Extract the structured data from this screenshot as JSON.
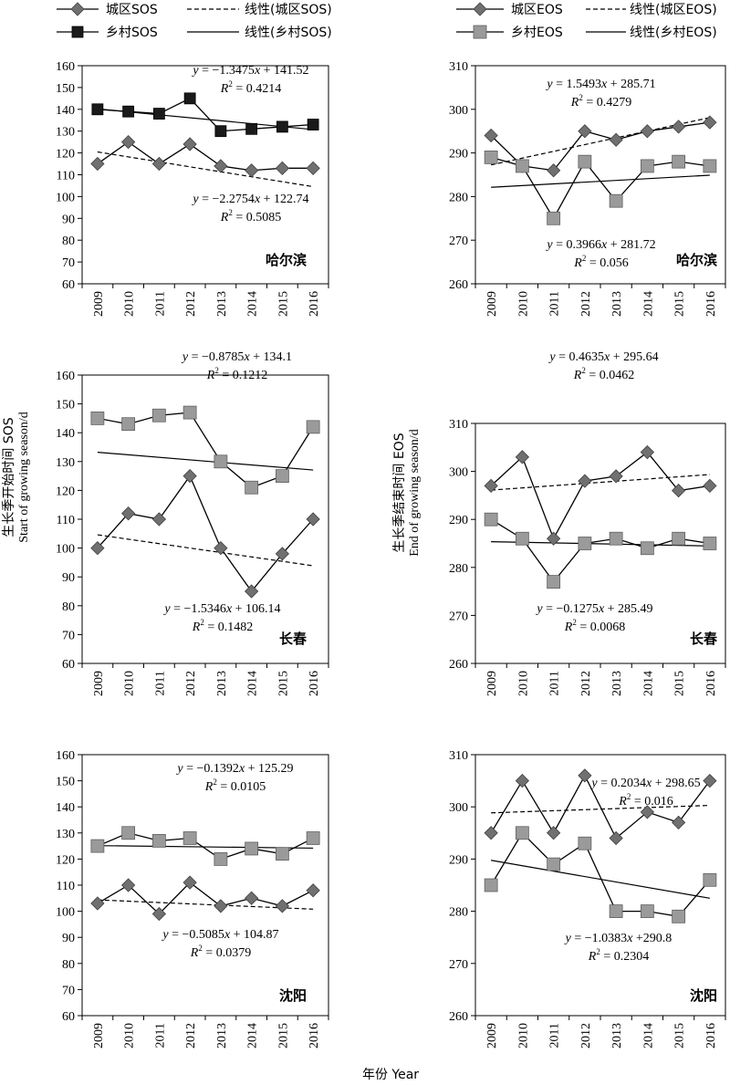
{
  "legend_left": {
    "urban_sos": "城区SOS",
    "urban_sos_linear": "线性(城区SOS)",
    "rural_sos": "乡村SOS",
    "rural_sos_linear": "线性(乡村SOS)"
  },
  "legend_right": {
    "urban_eos": "城区EOS",
    "urban_eos_linear": "线性(城区EOS)",
    "rural_eos": "乡村EOS",
    "rural_eos_linear": "线性(乡村EOS)"
  },
  "left_axis": {
    "label_cn": "生长季开始时间 SOS",
    "label_en": "Start of growing season/d"
  },
  "right_axis": {
    "label_cn": "生长季结束时间 EOS",
    "label_en": "End of growing season/d"
  },
  "x_axis_label": "年份 Year",
  "colors": {
    "urban_marker": "#707070",
    "rural_marker": "#9a9a9a",
    "rural_marker_dark": "#1a1a1a",
    "line": "#000000"
  },
  "chart_data": [
    {
      "type": "line",
      "city": "哈尔滨",
      "metric": "SOS",
      "x": [
        2009,
        2010,
        2011,
        2012,
        2013,
        2014,
        2015,
        2016
      ],
      "ylim": [
        60,
        160
      ],
      "yticks": [
        60,
        70,
        80,
        90,
        100,
        110,
        120,
        130,
        140,
        150,
        160
      ],
      "series": [
        {
          "name": "城区SOS",
          "values": [
            115,
            125,
            115,
            124,
            114,
            112,
            113,
            113
          ]
        },
        {
          "name": "乡村SOS",
          "values": [
            140,
            139,
            138,
            145,
            130,
            131,
            132,
            133
          ]
        }
      ],
      "annotations": [
        {
          "series": "乡村SOS",
          "eq": "y = −1.3475x + 141.52",
          "r2": "R2 = 0.4214",
          "slope": -1.3475,
          "intercept": 141.52
        },
        {
          "series": "城区SOS",
          "eq": "y = −2.2754x + 122.74",
          "r2": "R2 = 0.5085",
          "slope": -2.2754,
          "intercept": 122.74
        }
      ]
    },
    {
      "type": "line",
      "city": "哈尔滨",
      "metric": "EOS",
      "x": [
        2009,
        2010,
        2011,
        2012,
        2013,
        2014,
        2015,
        2016
      ],
      "ylim": [
        260,
        310
      ],
      "yticks": [
        260,
        270,
        280,
        290,
        300,
        310
      ],
      "series": [
        {
          "name": "城区EOS",
          "values": [
            294,
            287,
            286,
            295,
            293,
            295,
            296,
            297
          ]
        },
        {
          "name": "乡村EOS",
          "values": [
            289,
            287,
            275,
            288,
            279,
            287,
            288,
            287
          ]
        }
      ],
      "annotations": [
        {
          "series": "城区EOS",
          "eq": "y = 1.5493x + 285.71",
          "r2": "R2 = 0.4279",
          "slope": 1.5493,
          "intercept": 285.71
        },
        {
          "series": "乡村EOS",
          "eq": "y = 0.3966x + 281.72",
          "r2": "R2 = 0.056",
          "slope": 0.3966,
          "intercept": 281.72
        }
      ]
    },
    {
      "type": "line",
      "city": "长春",
      "metric": "SOS",
      "x": [
        2009,
        2010,
        2011,
        2012,
        2013,
        2014,
        2015,
        2016
      ],
      "ylim": [
        60,
        160
      ],
      "yticks": [
        60,
        70,
        80,
        90,
        100,
        110,
        120,
        130,
        140,
        150,
        160
      ],
      "series": [
        {
          "name": "城区SOS",
          "values": [
            100,
            112,
            110,
            125,
            100,
            85,
            98,
            110
          ]
        },
        {
          "name": "乡村SOS",
          "values": [
            145,
            143,
            146,
            147,
            130,
            121,
            125,
            142
          ]
        }
      ],
      "annotations": [
        {
          "series": "乡村SOS",
          "eq": "y = −0.8785x + 134.1",
          "r2": "R2 = 0.1212",
          "slope": -0.8785,
          "intercept": 134.1
        },
        {
          "series": "城区SOS",
          "eq": "y = −1.5346x + 106.14",
          "r2": "R2 = 0.1482",
          "slope": -1.5346,
          "intercept": 106.14
        }
      ]
    },
    {
      "type": "line",
      "city": "长春",
      "metric": "EOS",
      "x": [
        2009,
        2010,
        2011,
        2012,
        2013,
        2014,
        2015,
        2016
      ],
      "ylim": [
        260,
        310
      ],
      "yticks": [
        260,
        270,
        280,
        290,
        300,
        310
      ],
      "series": [
        {
          "name": "城区EOS",
          "values": [
            297,
            303,
            286,
            298,
            299,
            304,
            296,
            297
          ]
        },
        {
          "name": "乡村EOS",
          "values": [
            290,
            286,
            277,
            285,
            286,
            284,
            286,
            285
          ]
        }
      ],
      "annotations": [
        {
          "series": "城区EOS",
          "eq": "y = 0.4635x + 295.64",
          "r2": "R2 = 0.0462",
          "slope": 0.4635,
          "intercept": 295.64
        },
        {
          "series": "乡村EOS",
          "eq": "y = −0.1275x + 285.49",
          "r2": "R2 = 0.0068",
          "slope": -0.1275,
          "intercept": 285.49
        }
      ]
    },
    {
      "type": "line",
      "city": "沈阳",
      "metric": "SOS",
      "x": [
        2009,
        2010,
        2011,
        2012,
        2013,
        2014,
        2015,
        2016
      ],
      "ylim": [
        60,
        160
      ],
      "yticks": [
        60,
        70,
        80,
        90,
        100,
        110,
        120,
        130,
        140,
        150,
        160
      ],
      "series": [
        {
          "name": "城区SOS",
          "values": [
            103,
            110,
            99,
            111,
            102,
            105,
            102,
            108
          ]
        },
        {
          "name": "乡村SOS",
          "values": [
            125,
            130,
            127,
            128,
            120,
            124,
            122,
            128
          ]
        }
      ],
      "annotations": [
        {
          "series": "乡村SOS",
          "eq": "y = −0.1392x + 125.29",
          "r2": "R2 = 0.0105",
          "slope": -0.1392,
          "intercept": 125.29
        },
        {
          "series": "城区SOS",
          "eq": "y = −0.5085x + 104.87",
          "r2": "R2 = 0.0379",
          "slope": -0.5085,
          "intercept": 104.87
        }
      ]
    },
    {
      "type": "line",
      "city": "沈阳",
      "metric": "EOS",
      "x": [
        2009,
        2010,
        2011,
        2012,
        2013,
        2014,
        2015,
        2016
      ],
      "ylim": [
        260,
        310
      ],
      "yticks": [
        260,
        270,
        280,
        290,
        300,
        310
      ],
      "series": [
        {
          "name": "城区EOS",
          "values": [
            295,
            305,
            295,
            306,
            294,
            299,
            297,
            305
          ]
        },
        {
          "name": "乡村EOS",
          "values": [
            285,
            295,
            289,
            293,
            280,
            280,
            279,
            286
          ]
        }
      ],
      "annotations": [
        {
          "series": "城区EOS",
          "eq": "y = 0.2034x + 298.65",
          "r2": "R2 = 0.016",
          "slope": 0.2034,
          "intercept": 298.65
        },
        {
          "series": "乡村EOS",
          "eq": "y = −1.0383x +290.8",
          "r2": "R2 = 0.2304",
          "slope": -1.0383,
          "intercept": 290.8
        }
      ]
    }
  ]
}
